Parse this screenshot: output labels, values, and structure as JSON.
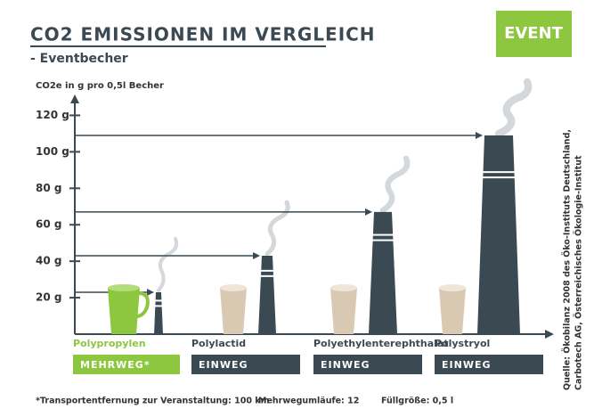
{
  "chart_data": {
    "type": "bar",
    "title": "CO2 EMISSIONEN IM VERGLEICH",
    "subtitle": "- Eventbecher",
    "badge": "EVENT",
    "y_label": "CO2e in g pro 0,5l Becher",
    "categories": [
      "Polypropylen",
      "Polylactid",
      "Polyethylenterephthalat",
      "Polystryol"
    ],
    "values": [
      23,
      43,
      67,
      109
    ],
    "colors": [
      "#8dc63f",
      "#3b4a52",
      "#3b4a52",
      "#3b4a52"
    ],
    "tags": [
      "MEHRWEG*",
      "EINWEG",
      "EINWEG",
      "EINWEG"
    ],
    "ylim": [
      0,
      130
    ],
    "yticks": [
      {
        "value": 20,
        "label": "20 g"
      },
      {
        "value": 40,
        "label": "40 g"
      },
      {
        "value": 60,
        "label": "60 g"
      },
      {
        "value": 80,
        "label": "80 g"
      },
      {
        "value": 100,
        "label": "100 g"
      },
      {
        "value": 120,
        "label": "120 g"
      }
    ],
    "notes": [
      "*Transportentfernung zur Veranstaltung: 100 km",
      "Mehrwegumläufe: 12",
      "Füllgröße: 0,5 l"
    ],
    "source": [
      "Quelle: Ökobilanz 2008 des Öko-Instituts Deutschland,",
      "Carbotech AG, Österreichisches Ökologie-Institut"
    ]
  }
}
